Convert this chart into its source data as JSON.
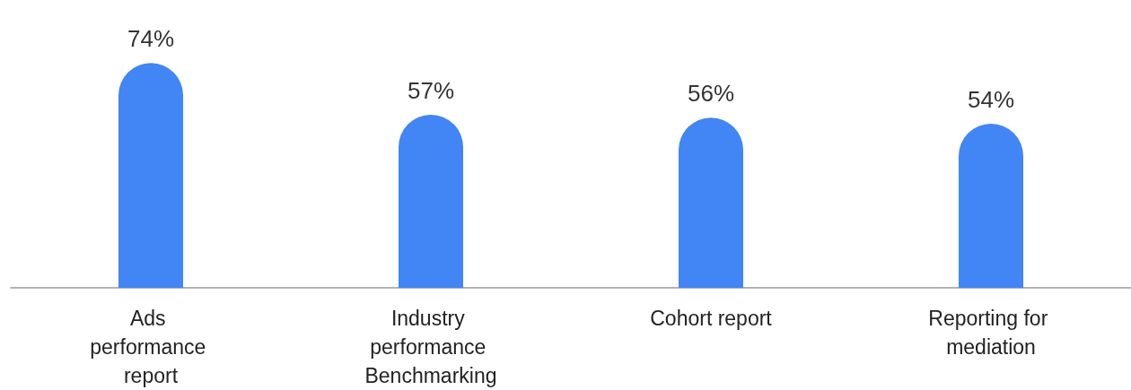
{
  "chart_data": {
    "type": "bar",
    "categories": [
      "Ads performance report",
      "Industry performance Benchmarking",
      "Cohort report",
      "Reporting for mediation"
    ],
    "values": [
      74,
      57,
      56,
      54
    ],
    "value_labels": [
      "74%",
      "57%",
      "56%",
      "54%"
    ],
    "color": "#4285f4",
    "grid": false
  }
}
